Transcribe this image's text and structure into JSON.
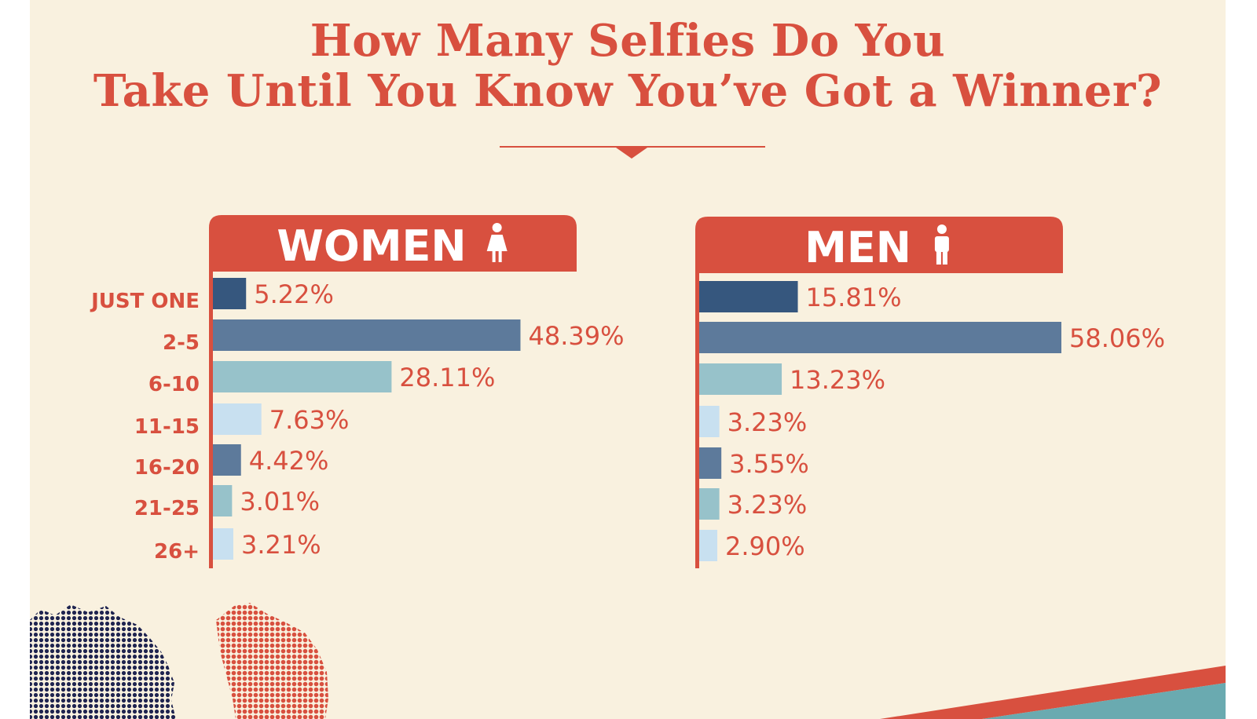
{
  "title_lines": [
    "How Many Selfies Do You",
    "Take Until You Know You’ve Got a Winner?"
  ],
  "colors": {
    "background": "#f9f1df",
    "accent": "#d8503f",
    "bar_shades": [
      "#36577e",
      "#5d7a9b",
      "#97c2ca",
      "#c8e0f0",
      "#5d7a9b",
      "#97c2ca",
      "#c8e0f0"
    ],
    "illustration_navy": "#1f2450",
    "illustration_teal": "#6aaab0"
  },
  "icons": {
    "women": "female-figure-icon",
    "men": "male-figure-icon"
  },
  "chart_data": [
    {
      "type": "bar",
      "orientation": "horizontal",
      "title": "WOMEN",
      "categories": [
        "JUST ONE",
        "2-5",
        "6-10",
        "11-15",
        "16-20",
        "21-25",
        "26+"
      ],
      "values": [
        5.22,
        48.39,
        28.11,
        7.63,
        4.42,
        3.01,
        3.21
      ],
      "labels": [
        "5.22%",
        "48.39%",
        "28.11%",
        "7.63%",
        "4.42%",
        "3.01%",
        "3.21%"
      ],
      "unit": "%",
      "grid": false
    },
    {
      "type": "bar",
      "orientation": "horizontal",
      "title": "MEN",
      "categories": [
        "JUST ONE",
        "2-5",
        "6-10",
        "11-15",
        "16-20",
        "21-25",
        "26+"
      ],
      "values": [
        15.81,
        58.06,
        13.23,
        3.23,
        3.55,
        3.23,
        2.9
      ],
      "labels": [
        "15.81%",
        "58.06%",
        "13.23%",
        "3.23%",
        "3.55%",
        "3.23%",
        "2.90%"
      ],
      "unit": "%",
      "grid": false
    }
  ]
}
